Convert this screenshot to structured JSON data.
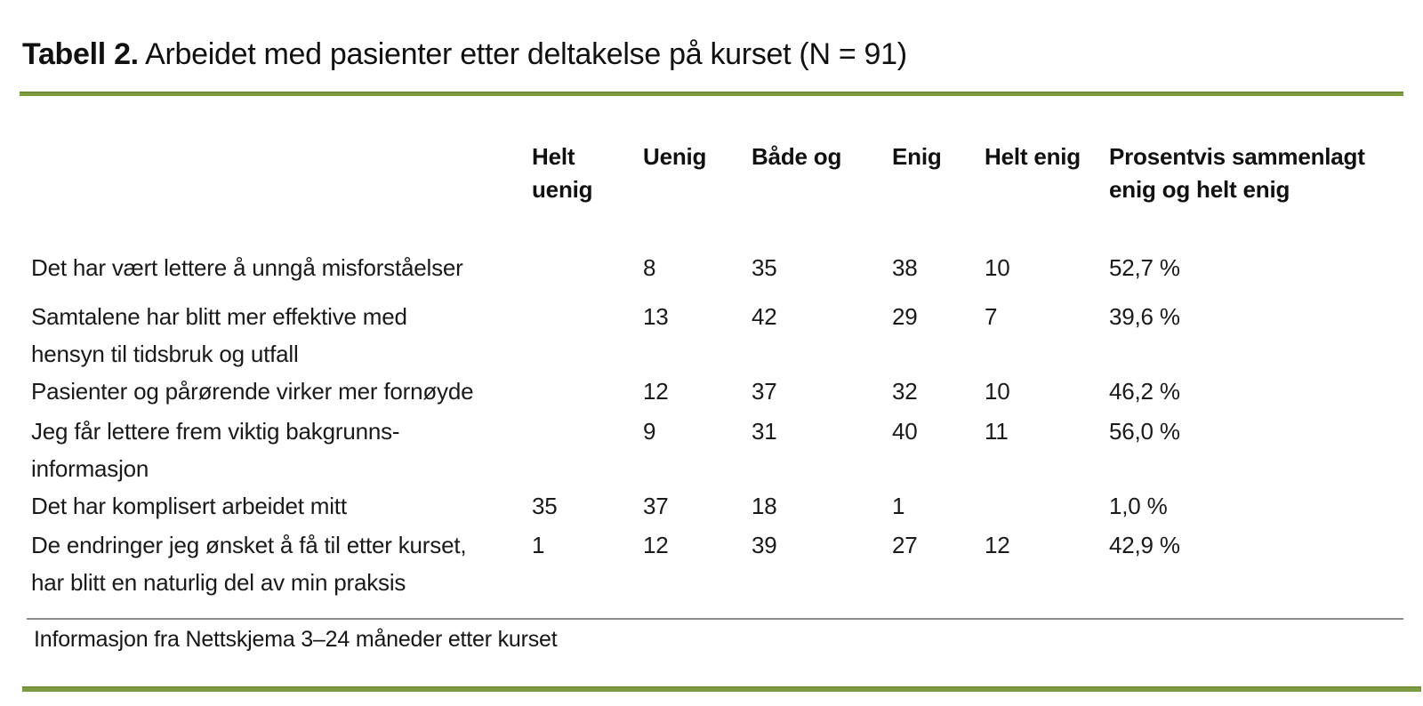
{
  "title": {
    "label": "Tabell 2.",
    "text": "Arbeidet med pasienter etter deltakelse på kurset (N = 91)"
  },
  "table": {
    "headers": [
      {
        "lines": [
          "Helt",
          "uenig"
        ]
      },
      {
        "lines": [
          "Uenig"
        ]
      },
      {
        "lines": [
          "Både og"
        ]
      },
      {
        "lines": [
          "Enig"
        ]
      },
      {
        "lines": [
          "Helt enig"
        ]
      },
      {
        "lines": [
          "Prosentvis sammenlagt",
          "enig og helt enig"
        ]
      }
    ],
    "rows": [
      {
        "label_lines": [
          "Det har vært lettere å unngå misforståelser"
        ],
        "values": [
          "",
          "8",
          "35",
          "38",
          "10",
          "52,7 %"
        ]
      },
      {
        "label_lines": [
          "Samtalene har blitt mer effektive med",
          "hensyn til tidsbruk og utfall"
        ],
        "values": [
          "",
          "13",
          "42",
          "29",
          "7",
          "39,6 %"
        ]
      },
      {
        "label_lines": [
          "Pasienter og pårørende virker mer fornøyde"
        ],
        "values": [
          "",
          "12",
          "37",
          "32",
          "10",
          "46,2 %"
        ]
      },
      {
        "label_lines": [
          "Jeg får lettere frem viktig bakgrunns-",
          "informasjon"
        ],
        "values": [
          "",
          "9",
          "31",
          "40",
          "11",
          "56,0 %"
        ]
      },
      {
        "label_lines": [
          "Det har komplisert arbeidet mitt"
        ],
        "values": [
          "35",
          "37",
          "18",
          "1",
          "",
          "1,0 %"
        ]
      },
      {
        "label_lines": [
          "De endringer jeg ønsket å få til etter kurset,",
          "har blitt en naturlig del av min praksis"
        ],
        "values": [
          "1",
          "12",
          "39",
          "27",
          "12",
          "42,9 %"
        ]
      }
    ],
    "footnote": "Informasjon fra Nettskjema 3–24 måneder etter kurset"
  },
  "colors": {
    "accent_green": "#7d9b40",
    "rule_gray": "#8d8d8d",
    "text": "#1a1a1a"
  }
}
